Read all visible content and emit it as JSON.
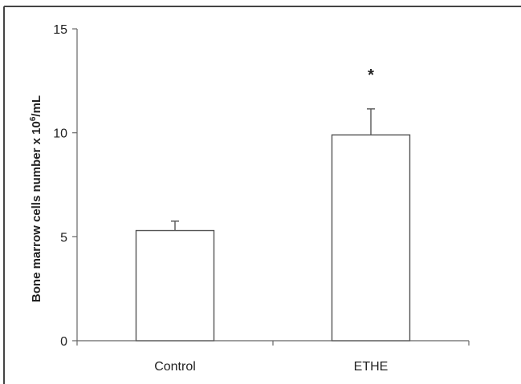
{
  "chart_data": {
    "type": "bar",
    "categories": [
      "Control",
      "ETHE"
    ],
    "values": [
      5.3,
      9.9
    ],
    "errors": [
      0.45,
      1.25
    ],
    "annotations": [
      "",
      "*"
    ],
    "ylabel_main": "Bone marrow  cells number x 10",
    "ylabel_sup": "6",
    "ylabel_unit": "/mL",
    "yticks": [
      0,
      5,
      10,
      15
    ],
    "ylim": [
      0,
      15
    ],
    "grid": false,
    "legend": false
  },
  "colors": {
    "bar_fill": "#ffffff",
    "bar_stroke": "#555555",
    "axis": "#666666",
    "frame": "#444444"
  }
}
